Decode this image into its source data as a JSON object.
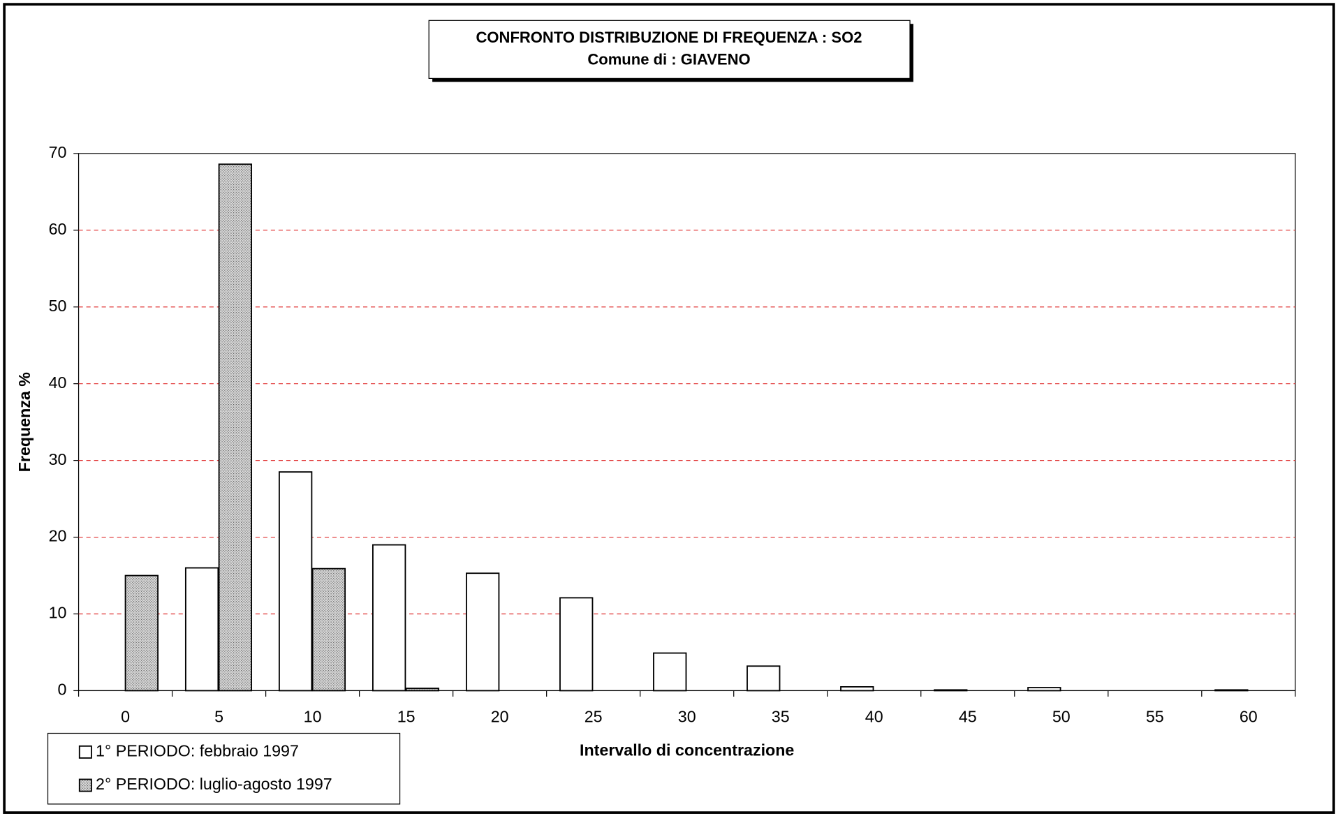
{
  "chart_data": {
    "type": "bar",
    "title": "CONFRONTO DISTRIBUZIONE DI FREQUENZA : SO2",
    "subtitle": "Comune di : GIAVENO",
    "x_label": "Intervallo di concentrazione",
    "y_label": "Frequenza %",
    "categories": [
      "0",
      "5",
      "10",
      "15",
      "20",
      "25",
      "30",
      "35",
      "40",
      "45",
      "50",
      "55",
      "60"
    ],
    "series": [
      {
        "name": "1° PERIODO: febbraio 1997",
        "color": "#ffffff",
        "values": [
          0,
          16,
          28.5,
          19,
          15.3,
          12.1,
          4.9,
          3.2,
          0.5,
          0.1,
          0.4,
          0,
          0.1
        ]
      },
      {
        "name": "2° PERIODO: luglio-agosto 1997",
        "color": "#a8a8a8",
        "values": [
          15,
          68.6,
          15.9,
          0.3,
          0,
          0,
          0,
          0,
          0,
          0,
          0,
          0,
          0
        ]
      }
    ],
    "ylim": [
      0,
      70
    ],
    "yticks": [
      0,
      10,
      20,
      30,
      40,
      50,
      60,
      70
    ],
    "grid": true,
    "legend": "bottom-left"
  }
}
